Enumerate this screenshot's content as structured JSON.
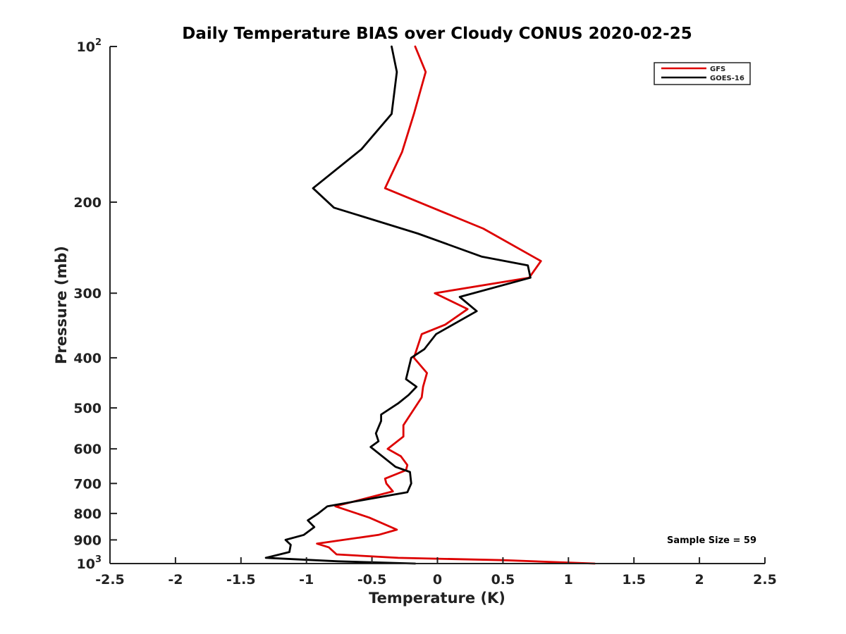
{
  "chart_data": {
    "type": "line",
    "title": "Daily Temperature BIAS over Cloudy CONUS 2020-02-25",
    "xlabel": "Temperature (K)",
    "ylabel": "Pressure (mb)",
    "xlim": [
      -2.5,
      2.5
    ],
    "ylim": [
      100,
      1000
    ],
    "y_scale": "log",
    "y_reversed": true,
    "grid": false,
    "legend_position": "top-right",
    "x_ticks": [
      {
        "value": -2.5,
        "label": "-2.5"
      },
      {
        "value": -2,
        "label": "-2"
      },
      {
        "value": -1.5,
        "label": "-1.5"
      },
      {
        "value": -1,
        "label": "-1"
      },
      {
        "value": -0.5,
        "label": "-0.5"
      },
      {
        "value": 0,
        "label": "0"
      },
      {
        "value": 0.5,
        "label": "0.5"
      },
      {
        "value": 1,
        "label": "1"
      },
      {
        "value": 1.5,
        "label": "1.5"
      },
      {
        "value": 2,
        "label": "2"
      },
      {
        "value": 2.5,
        "label": "2.5"
      }
    ],
    "y_ticks": [
      {
        "value": 100,
        "label": "10",
        "exp": "2"
      },
      {
        "value": 200,
        "label": "200"
      },
      {
        "value": 300,
        "label": "300"
      },
      {
        "value": 400,
        "label": "400"
      },
      {
        "value": 500,
        "label": "500"
      },
      {
        "value": 600,
        "label": "600"
      },
      {
        "value": 700,
        "label": "700"
      },
      {
        "value": 800,
        "label": "800"
      },
      {
        "value": 900,
        "label": "900"
      },
      {
        "value": 1000,
        "label": "10",
        "exp": "3"
      }
    ],
    "annotation": "Sample Size = 59",
    "series": [
      {
        "name": "GFS",
        "color": "#dd0000",
        "temperature": [
          -0.17,
          -0.09,
          -0.18,
          -0.27,
          -0.4,
          -0.08,
          0.35,
          0.79,
          0.7,
          -0.02,
          0.23,
          0.06,
          -0.12,
          -0.18,
          -0.08,
          -0.11,
          -0.12,
          -0.26,
          -0.26,
          -0.38,
          -0.28,
          -0.23,
          -0.24,
          -0.4,
          -0.39,
          -0.34,
          -0.78,
          -0.52,
          -0.31,
          -0.45,
          -0.92,
          -0.83,
          -0.77,
          -0.3,
          0.5,
          1.2
        ],
        "pressure": [
          100,
          112,
          135,
          160,
          188,
          203,
          225,
          260,
          280,
          300,
          322,
          345,
          360,
          400,
          428,
          455,
          477,
          540,
          568,
          600,
          620,
          645,
          660,
          685,
          700,
          725,
          775,
          815,
          860,
          880,
          915,
          930,
          960,
          975,
          985,
          1000
        ]
      },
      {
        "name": "GOES-16",
        "color": "#000000",
        "temperature": [
          -0.35,
          -0.31,
          -0.35,
          -0.58,
          -0.95,
          -0.79,
          -0.15,
          0.34,
          0.69,
          0.71,
          0.17,
          0.3,
          -0.01,
          -0.1,
          -0.2,
          -0.24,
          -0.16,
          -0.22,
          -0.3,
          -0.43,
          -0.43,
          -0.47,
          -0.45,
          -0.51,
          -0.32,
          -0.21,
          -0.2,
          -0.23,
          -0.84,
          -0.91,
          -0.99,
          -0.94,
          -1.02,
          -1.16,
          -1.12,
          -1.13,
          -1.31,
          -0.76,
          -0.17
        ],
        "pressure": [
          100,
          112,
          135,
          158,
          188,
          205,
          230,
          255,
          265,
          280,
          305,
          325,
          360,
          385,
          400,
          440,
          455,
          472,
          490,
          515,
          530,
          560,
          580,
          595,
          650,
          665,
          700,
          728,
          775,
          800,
          825,
          850,
          880,
          900,
          920,
          950,
          975,
          990,
          1000
        ]
      }
    ]
  }
}
